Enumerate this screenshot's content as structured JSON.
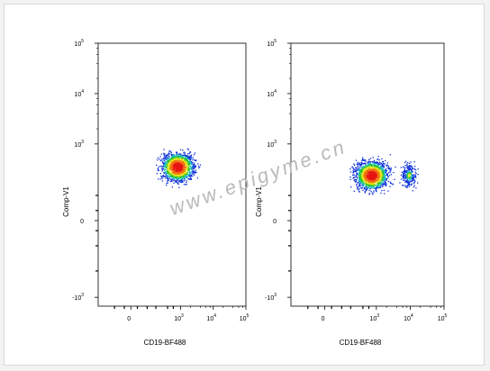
{
  "chart_data": [
    {
      "type": "scatter",
      "xlabel": "CD19-BF488",
      "ylabel": "Comp-V1",
      "x_ticks": [
        "0",
        "10",
        "10",
        "10"
      ],
      "x_tick_exponents": [
        "",
        "3",
        "4",
        "5"
      ],
      "y_ticks": [
        "-10",
        "0",
        "10",
        "10",
        "10"
      ],
      "y_tick_exponents": [
        "3",
        "",
        "3",
        "4",
        "5"
      ],
      "xlim": [
        -300,
        100000
      ],
      "ylim": [
        -1500,
        100000
      ],
      "x_scale": "biexponential",
      "y_scale": "biexponential",
      "populations": [
        {
          "x_center": 800,
          "y_center": 300,
          "events": "major"
        }
      ]
    },
    {
      "type": "scatter",
      "xlabel": "CD19-BF488",
      "ylabel": "Comp-V1",
      "x_ticks": [
        "0",
        "10",
        "10",
        "10"
      ],
      "x_tick_exponents": [
        "",
        "3",
        "4",
        "5"
      ],
      "y_ticks": [
        "-10",
        "0",
        "10",
        "10",
        "10"
      ],
      "y_tick_exponents": [
        "3",
        "",
        "3",
        "4",
        "5"
      ],
      "xlim": [
        -300,
        100000
      ],
      "ylim": [
        -1500,
        100000
      ],
      "x_scale": "biexponential",
      "y_scale": "biexponential",
      "populations": [
        {
          "x_center": 700,
          "y_center": 250,
          "events": "major"
        },
        {
          "x_center": 9000,
          "y_center": 250,
          "events": "minor"
        }
      ]
    }
  ],
  "watermark": "www.epigyme.cn",
  "colors": {
    "low": "#0b2fd8",
    "mid_low": "#17b7c6",
    "mid": "#28c42b",
    "mid_high": "#e3e21b",
    "high": "#f07010",
    "peak": "#e81515"
  }
}
